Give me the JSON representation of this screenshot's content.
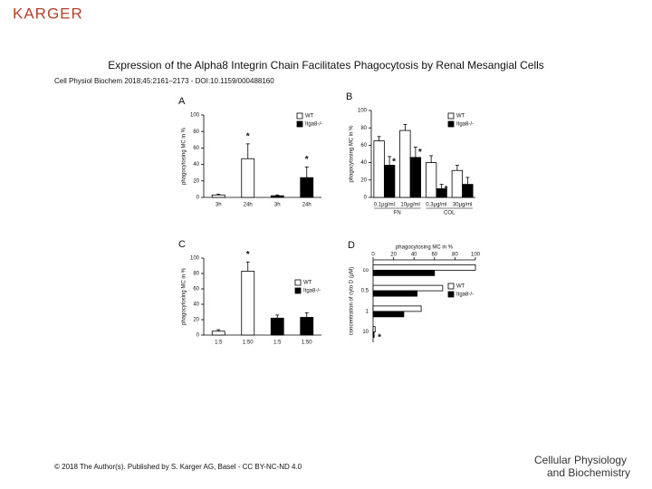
{
  "header": {
    "logo": "KARGER",
    "title": "Expression of the Alpha8 Integrin Chain Facilitates Phagocytosis by Renal Mesangial Cells",
    "citation": "Cell Physiol Biochem 2018;45:2161–2173 - DOI:10.1159/000488160"
  },
  "footer": {
    "copyright": "© 2018 The Author(s). Published by S. Karger AG, Basel - CC BY-NC-ND 4.0",
    "journal_line1": "Cellular Physiology",
    "journal_line2": "and Biochemistry"
  },
  "chart_data": [
    {
      "type": "bar",
      "panel": "A",
      "y_label": "phagocytosing MC in %",
      "categories": [
        "3h",
        "24h",
        "3h",
        "24h"
      ],
      "series": [
        {
          "name": "WT",
          "color": "#ffffff",
          "values": [
            3,
            47,
            null,
            null
          ],
          "errors": [
            1,
            18,
            null,
            null
          ]
        },
        {
          "name": "Itga8-/-",
          "color": "#000000",
          "values": [
            null,
            null,
            2,
            24
          ],
          "errors": [
            null,
            null,
            1,
            13
          ]
        }
      ],
      "ylim": [
        0,
        100
      ],
      "yticks": [
        0,
        20,
        40,
        60,
        80,
        100
      ],
      "annotations": [
        {
          "text": "*",
          "category": "24h",
          "series": "WT"
        },
        {
          "text": "*",
          "category": "24h",
          "series": "Itga8-/-"
        }
      ]
    },
    {
      "type": "bar",
      "panel": "B",
      "y_label": "phagocytosing MC in %",
      "categories": [
        "0.1µg/ml",
        "10µg/ml",
        "0.3µg/ml",
        "30µg/ml"
      ],
      "group_labels": [
        "FN",
        "COL"
      ],
      "series": [
        {
          "name": "WT",
          "color": "#ffffff",
          "values": [
            65,
            77,
            40,
            31
          ],
          "errors": [
            5,
            7,
            8,
            6
          ]
        },
        {
          "name": "Itga8-/-",
          "color": "#000000",
          "values": [
            37,
            46,
            10,
            15
          ],
          "errors": [
            10,
            12,
            5,
            8
          ]
        }
      ],
      "ylim": [
        0,
        100
      ],
      "yticks": [
        0,
        20,
        40,
        60,
        80,
        100
      ],
      "annotations": [
        {
          "text": "*",
          "category": "0.1µg/ml",
          "series": "Itga8-/-"
        },
        {
          "text": "*",
          "category": "10µg/ml",
          "series": "Itga8-/-"
        },
        {
          "text": "*",
          "category": "0.3µg/ml",
          "series": "Itga8-/-"
        }
      ]
    },
    {
      "type": "bar",
      "panel": "C",
      "y_label": "phagocytosing MC in %",
      "categories": [
        "1:5",
        "1:50",
        "1:5",
        "1:50"
      ],
      "series": [
        {
          "name": "WT",
          "color": "#ffffff",
          "values": [
            5,
            83,
            null,
            null
          ],
          "errors": [
            2,
            12,
            null,
            null
          ]
        },
        {
          "name": "Itga8-/-",
          "color": "#000000",
          "values": [
            null,
            null,
            22,
            23
          ],
          "errors": [
            null,
            null,
            4,
            6
          ]
        }
      ],
      "ylim": [
        0,
        100
      ],
      "yticks": [
        0,
        20,
        40,
        60,
        80,
        100
      ],
      "annotations": [
        {
          "text": "*",
          "category": "1:50",
          "series": "WT"
        }
      ]
    },
    {
      "type": "barh",
      "panel": "D",
      "x_label": "phagocytosing MC in %",
      "y_label": "concentration of cyto D (µM)",
      "categories": [
        "co",
        "0.5",
        "1",
        "10"
      ],
      "series": [
        {
          "name": "WT",
          "color": "#ffffff",
          "values": [
            100,
            68,
            47,
            2
          ]
        },
        {
          "name": "Itga8-/-",
          "color": "#000000",
          "values": [
            60,
            43,
            30,
            1
          ]
        }
      ],
      "xlim": [
        0,
        100
      ],
      "xticks": [
        0,
        20,
        40,
        60,
        80,
        100
      ],
      "annotations": [
        {
          "text": "*",
          "category": "10",
          "series": "Itga8-/-"
        }
      ]
    }
  ]
}
